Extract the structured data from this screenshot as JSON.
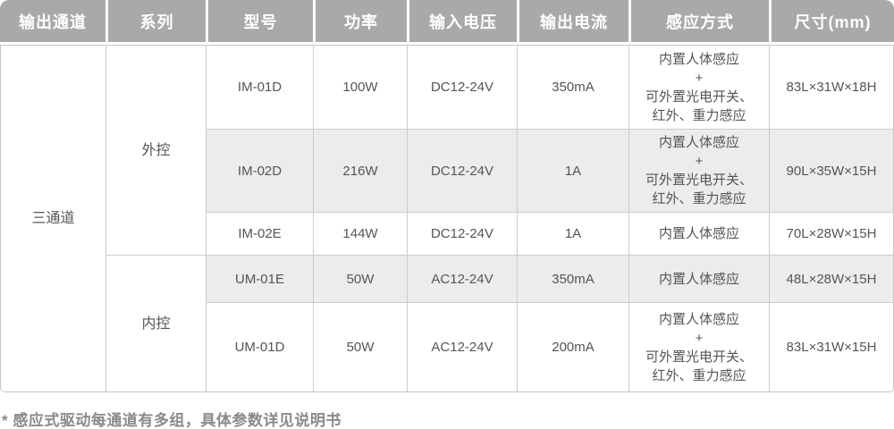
{
  "table": {
    "headers": [
      "输出通道",
      "系列",
      "型号",
      "功率",
      "输入电压",
      "输出电流",
      "感应方式",
      "尺寸(mm)"
    ],
    "channel_group": "三通道",
    "series_groups": [
      {
        "label": "外控"
      },
      {
        "label": "内控"
      }
    ],
    "rows": [
      {
        "model": "IM-01D",
        "power": "100W",
        "input_voltage": "DC12-24V",
        "output_current": "350mA",
        "sensing": "内置人体感应\n+\n可外置光电开关、\n红外、重力感应",
        "size": "83L×31W×18H"
      },
      {
        "model": "IM-02D",
        "power": "216W",
        "input_voltage": "DC12-24V",
        "output_current": "1A",
        "sensing": "内置人体感应\n+\n可外置光电开关、\n红外、重力感应",
        "size": "90L×35W×15H"
      },
      {
        "model": "IM-02E",
        "power": "144W",
        "input_voltage": "DC12-24V",
        "output_current": "1A",
        "sensing": "内置人体感应",
        "size": "70L×28W×15H"
      },
      {
        "model": "UM-01E",
        "power": "50W",
        "input_voltage": "AC12-24V",
        "output_current": "350mA",
        "sensing": "内置人体感应",
        "size": "48L×28W×15H"
      },
      {
        "model": "UM-01D",
        "power": "50W",
        "input_voltage": "AC12-24V",
        "output_current": "200mA",
        "sensing": "内置人体感应\n+\n可外置光电开关、\n红外、重力感应",
        "size": "83L×31W×15H"
      }
    ],
    "footnote": "* 感应式驱动每通道有多组，具体参数详见说明书"
  },
  "colors": {
    "header_bg": "#a9a9a9",
    "header_text": "#ffffff",
    "body_text": "#555555",
    "border": "#cccccc",
    "stripe": "#ececec",
    "footnote_text": "#8a8a8a"
  }
}
